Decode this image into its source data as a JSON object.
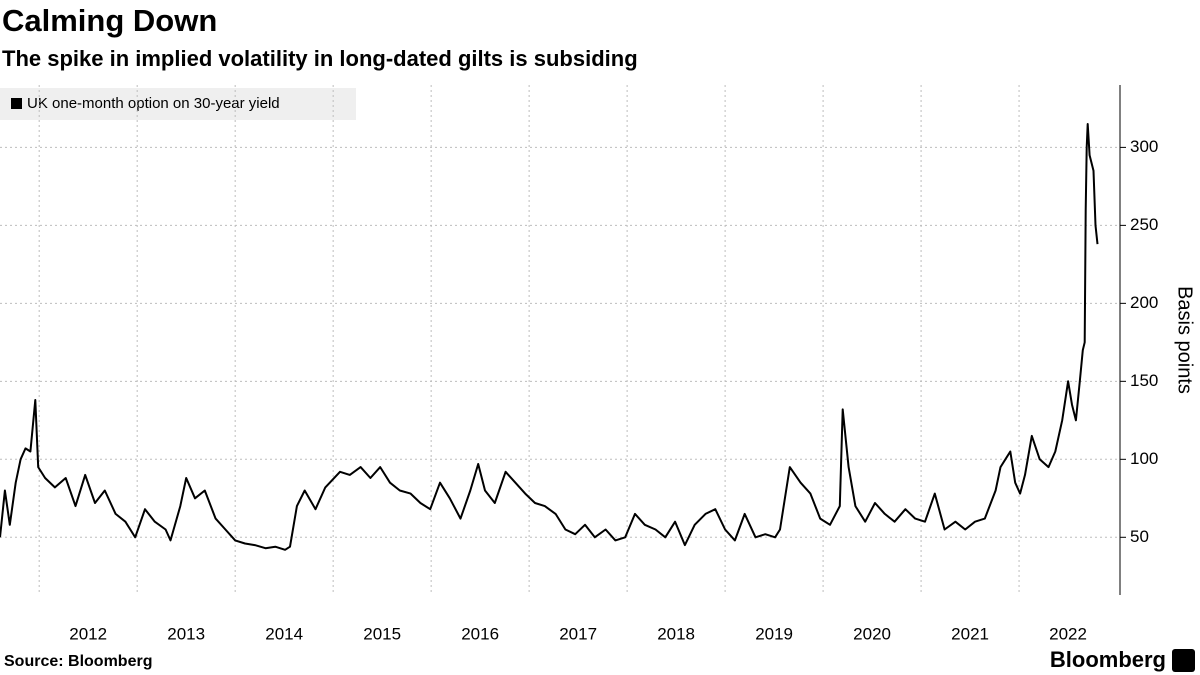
{
  "chart_data": {
    "type": "line",
    "title": "Calming Down",
    "subtitle": "The spike in implied volatility in long-dated gilts is subsiding",
    "source": "Source: Bloomberg",
    "brand": "Bloomberg",
    "y_label": "Basis points",
    "legend": "top-left",
    "grid": true,
    "xlim": [
      2011.6,
      2023.03
    ],
    "xticks": [
      2012,
      2013,
      2014,
      2015,
      2016,
      2017,
      2018,
      2019,
      2020,
      2021,
      2022
    ],
    "ylim": [
      13,
      340
    ],
    "yticks": [
      50,
      100,
      150,
      200,
      250,
      300
    ],
    "x": [
      2011.6,
      2011.65,
      2011.7,
      2011.76,
      2011.81,
      2011.86,
      2011.91,
      2011.96,
      2011.99,
      2012.06,
      2012.16,
      2012.27,
      2012.37,
      2012.47,
      2012.57,
      2012.67,
      2012.78,
      2012.88,
      2012.98,
      2013.08,
      2013.18,
      2013.29,
      2013.34,
      2013.44,
      2013.5,
      2013.59,
      2013.69,
      2013.8,
      2013.9,
      2014.0,
      2014.1,
      2014.2,
      2014.31,
      2014.41,
      2014.51,
      2014.56,
      2014.63,
      2014.71,
      2014.82,
      2014.92,
      2015.07,
      2015.17,
      2015.28,
      2015.38,
      2015.48,
      2015.58,
      2015.68,
      2015.79,
      2015.89,
      2015.99,
      2016.09,
      2016.19,
      2016.3,
      2016.4,
      2016.48,
      2016.55,
      2016.65,
      2016.76,
      2016.86,
      2016.96,
      2017.06,
      2017.16,
      2017.27,
      2017.37,
      2017.47,
      2017.57,
      2017.67,
      2017.78,
      2017.88,
      2017.98,
      2018.08,
      2018.18,
      2018.29,
      2018.39,
      2018.49,
      2018.59,
      2018.69,
      2018.8,
      2018.9,
      2019.0,
      2019.1,
      2019.2,
      2019.31,
      2019.41,
      2019.51,
      2019.56,
      2019.61,
      2019.66,
      2019.77,
      2019.87,
      2019.97,
      2020.07,
      2020.17,
      2020.2,
      2020.26,
      2020.33,
      2020.43,
      2020.53,
      2020.63,
      2020.73,
      2020.84,
      2020.94,
      2021.04,
      2021.14,
      2021.24,
      2021.35,
      2021.45,
      2021.55,
      2021.65,
      2021.76,
      2021.81,
      2021.86,
      2021.91,
      2021.96,
      2022.01,
      2022.06,
      2022.13,
      2022.21,
      2022.3,
      2022.37,
      2022.44,
      2022.5,
      2022.54,
      2022.58,
      2022.62,
      2022.65,
      2022.67,
      2022.68,
      2022.69,
      2022.7,
      2022.72,
      2022.76,
      2022.78,
      2022.8
    ],
    "series": [
      {
        "name": "UK one-month option on 30-year yield",
        "color": "#000000",
        "values": [
          50,
          80,
          58,
          85,
          100,
          107,
          105,
          138,
          95,
          88,
          82,
          88,
          70,
          90,
          72,
          80,
          65,
          60,
          50,
          68,
          60,
          55,
          48,
          70,
          88,
          75,
          80,
          62,
          55,
          48,
          46,
          45,
          43,
          44,
          42,
          44,
          70,
          80,
          68,
          82,
          92,
          90,
          95,
          88,
          95,
          85,
          80,
          78,
          72,
          68,
          85,
          75,
          62,
          80,
          97,
          80,
          72,
          92,
          85,
          78,
          72,
          70,
          65,
          55,
          52,
          58,
          50,
          55,
          48,
          50,
          65,
          58,
          55,
          50,
          60,
          45,
          58,
          65,
          68,
          55,
          48,
          65,
          50,
          52,
          50,
          55,
          75,
          95,
          85,
          78,
          62,
          58,
          70,
          132,
          95,
          70,
          60,
          72,
          65,
          60,
          68,
          62,
          60,
          78,
          55,
          60,
          55,
          60,
          62,
          80,
          95,
          100,
          105,
          85,
          78,
          90,
          115,
          100,
          95,
          105,
          125,
          150,
          135,
          125,
          150,
          170,
          175,
          260,
          300,
          315,
          295,
          285,
          250,
          238
        ]
      }
    ]
  }
}
